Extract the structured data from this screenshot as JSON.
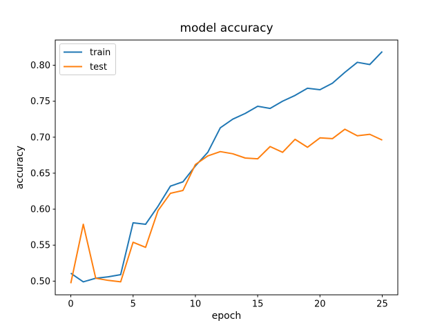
{
  "figure": {
    "background": "#ffffff",
    "text_color": "#000000",
    "spine_color": "#000000"
  },
  "chart_data": {
    "type": "line",
    "title": "model accuracy",
    "xlabel": "epoch",
    "ylabel": "accuracy",
    "grid": false,
    "xlim": [
      -1.25,
      26.25
    ],
    "ylim": [
      0.481,
      0.835
    ],
    "xticks": [
      0,
      5,
      10,
      15,
      20,
      25
    ],
    "xtick_labels": [
      "0",
      "5",
      "10",
      "15",
      "20",
      "25"
    ],
    "yticks": [
      0.5,
      0.55,
      0.6,
      0.65,
      0.7,
      0.75,
      0.8
    ],
    "ytick_labels": [
      "0.50",
      "0.55",
      "0.60",
      "0.65",
      "0.70",
      "0.75",
      "0.80"
    ],
    "x": [
      0,
      1,
      2,
      3,
      4,
      5,
      6,
      7,
      8,
      9,
      10,
      11,
      12,
      13,
      14,
      15,
      16,
      17,
      18,
      19,
      20,
      21,
      22,
      23,
      24,
      25
    ],
    "series": [
      {
        "name": "train",
        "color": "#1f77b4",
        "values": [
          0.511,
          0.499,
          0.504,
          0.506,
          0.509,
          0.581,
          0.579,
          0.604,
          0.632,
          0.638,
          0.66,
          0.679,
          0.713,
          0.725,
          0.733,
          0.743,
          0.74,
          0.75,
          0.758,
          0.768,
          0.766,
          0.775,
          0.79,
          0.804,
          0.801,
          0.819
        ]
      },
      {
        "name": "test",
        "color": "#ff7f0e",
        "values": [
          0.497,
          0.579,
          0.504,
          0.501,
          0.499,
          0.554,
          0.547,
          0.598,
          0.622,
          0.626,
          0.662,
          0.674,
          0.68,
          0.677,
          0.671,
          0.67,
          0.687,
          0.679,
          0.697,
          0.686,
          0.699,
          0.698,
          0.711,
          0.702,
          0.704,
          0.696
        ]
      }
    ],
    "legend": {
      "position": "upper left",
      "border_color": "#cccccc",
      "entries": [
        "train",
        "test"
      ]
    }
  }
}
